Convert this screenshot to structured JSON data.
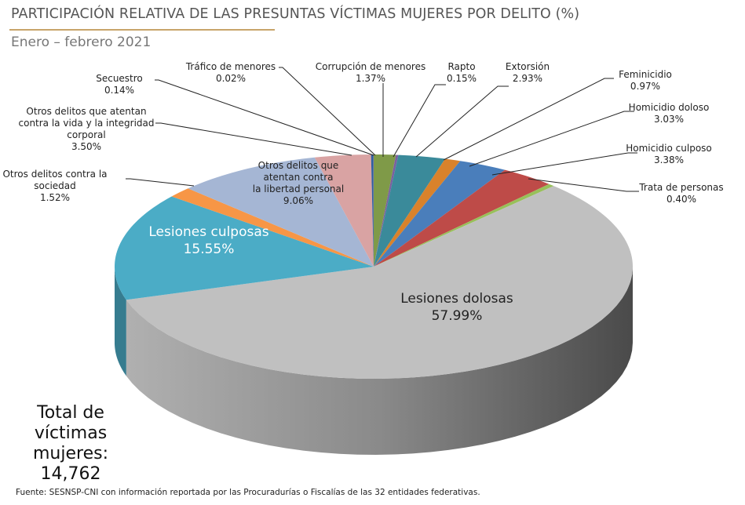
{
  "header": {
    "title": "PARTICIPACIÓN RELATIVA DE LAS PRESUNTAS VÍCTIMAS MUJERES POR DELITO (%)",
    "subtitle": "Enero – febrero 2021"
  },
  "total": {
    "label": "Total de víctimas mujeres:",
    "value": "14,762"
  },
  "source": "Fuente: SESNSP-CNI con información reportada por las Procuradurías o Fiscalías de las 32 entidades federativas.",
  "chart_data": {
    "type": "pie",
    "style": "3d",
    "title": "PARTICIPACIÓN RELATIVA DE LAS PRESUNTAS VÍCTIMAS MUJERES POR DELITO (%)",
    "start": "top",
    "direction": "clockwise",
    "slices": [
      {
        "label": "Corrupción de menores",
        "value": 1.37,
        "text": "1.37%",
        "color": "#7f9a48"
      },
      {
        "label": "Rapto",
        "value": 0.15,
        "text": "0.15%",
        "color": "#7b5fa0"
      },
      {
        "label": "Extorsión",
        "value": 2.93,
        "text": "2.93%",
        "color": "#3a8a9a"
      },
      {
        "label": "Feminicidio",
        "value": 0.97,
        "text": "0.97%",
        "color": "#d9822b"
      },
      {
        "label": "Homicidio doloso",
        "value": 3.03,
        "text": "3.03%",
        "color": "#4a7ebb"
      },
      {
        "label": "Homicidio culposo",
        "value": 3.38,
        "text": "3.38%",
        "color": "#be4b48"
      },
      {
        "label": "Trata de personas",
        "value": 0.4,
        "text": "0.40%",
        "color": "#98c05a"
      },
      {
        "label": "Lesiones dolosas",
        "value": 57.99,
        "text": "57.99%",
        "color": "#c0c0c0"
      },
      {
        "label": "Lesiones culposas",
        "value": 15.55,
        "text": "15.55%",
        "color": "#4bacc6"
      },
      {
        "label": "Otros delitos contra la sociedad",
        "value": 1.52,
        "text": "1.52%",
        "color": "#f79646"
      },
      {
        "label": "Otros delitos que atentan contra la libertad personal",
        "value": 9.06,
        "text": "9.06%",
        "color": "#a5b6d4"
      },
      {
        "label": "Otros delitos que atentan contra la vida y la integridad corporal",
        "value": 3.5,
        "text": "3.50%",
        "color": "#d9a3a3"
      },
      {
        "label": "Secuestro",
        "value": 0.14,
        "text": "0.14%",
        "color": "#2e5f9e"
      },
      {
        "label": "Tráfico de menores",
        "value": 0.02,
        "text": "0.02%",
        "color": "#8e6fb0"
      }
    ]
  }
}
